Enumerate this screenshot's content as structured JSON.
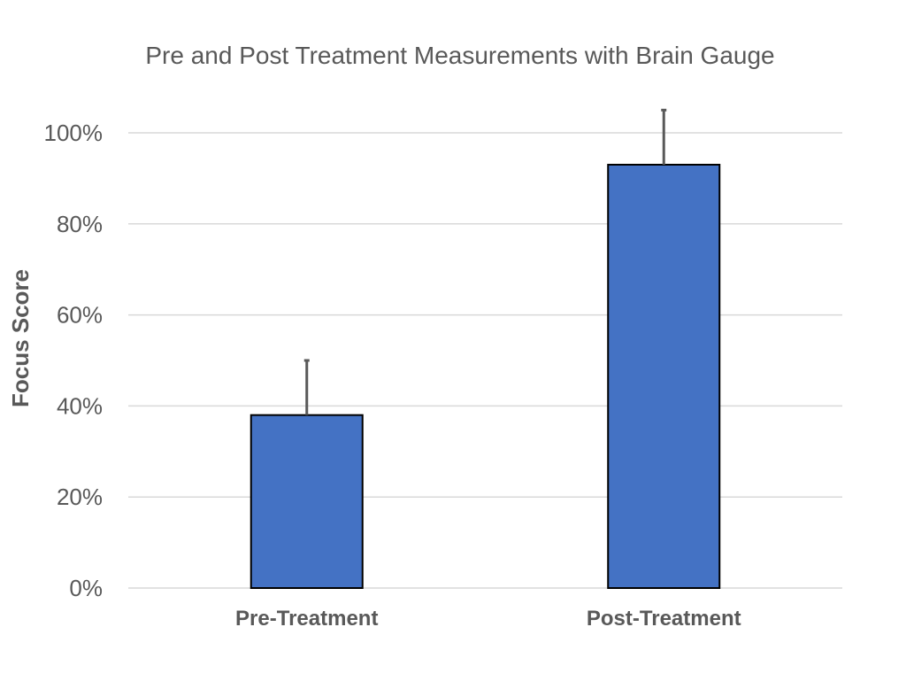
{
  "chart_data": {
    "type": "bar",
    "title": "Pre and Post Treatment Measurements with Brain Gauge",
    "xlabel": "",
    "ylabel": "Focus Score",
    "categories": [
      "Pre-Treatment",
      "Post-Treatment"
    ],
    "values": [
      38,
      93
    ],
    "error_upper": [
      12,
      12
    ],
    "ylim": [
      0,
      100
    ],
    "yticks": [
      0,
      20,
      40,
      60,
      80,
      100
    ],
    "ytick_labels": [
      "0%",
      "20%",
      "40%",
      "60%",
      "80%",
      "100%"
    ],
    "grid": true,
    "legend": "none",
    "colors": {
      "bar": "#4472c4",
      "bar_edge": "#000000",
      "error_bar": "#595959"
    }
  }
}
